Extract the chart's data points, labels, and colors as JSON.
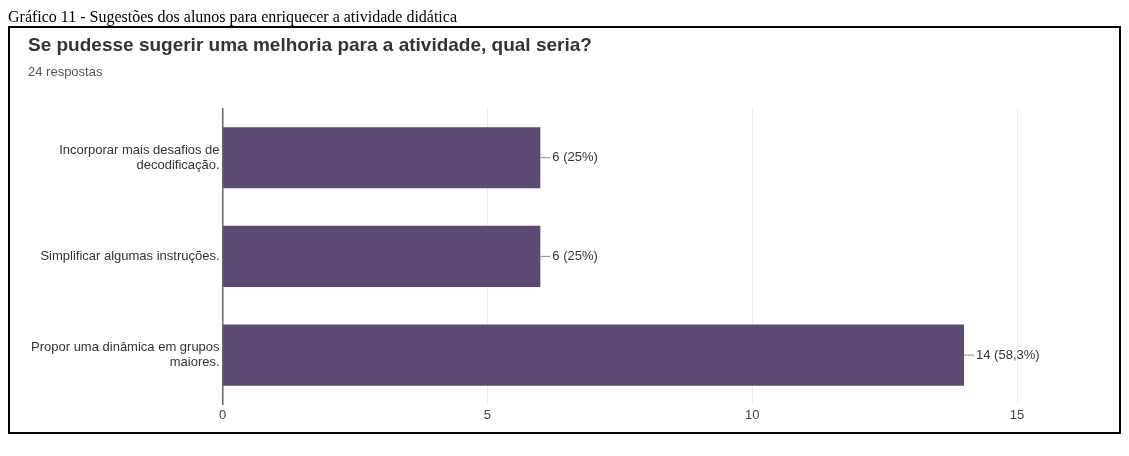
{
  "chart_data": {
    "type": "bar",
    "orientation": "horizontal",
    "title": "Se pudesse sugerir uma melhoria para a atividade, qual seria?",
    "subtitle": "24 respostas",
    "annotations": [
      "Gráfico 11 - Sugestões dos alunos para enriquecer a atividade didática"
    ],
    "categories": [
      "Incorporar mais desafios de decodificação.",
      "Simplificar algumas instruções.",
      "Propor uma dinâmica em grupos maiores."
    ],
    "values": [
      6,
      6,
      14
    ],
    "value_labels": [
      "6 (25%)",
      "6 (25%)",
      "14 (58,3%)"
    ],
    "color": "#5b4a72",
    "xlim": [
      0,
      15
    ],
    "xticks": [
      0,
      5,
      10,
      15
    ],
    "grid": "x",
    "legend": false
  }
}
